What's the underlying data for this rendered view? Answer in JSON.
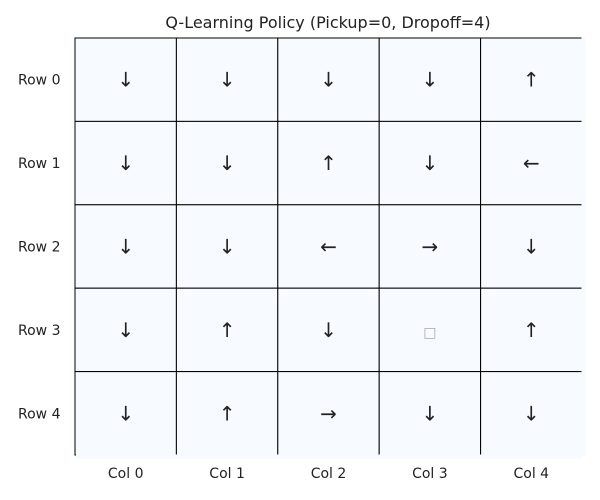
{
  "chart_data": {
    "type": "heatmap",
    "title": "Q-Learning Policy (Pickup=0, Dropoff=4)",
    "rows": [
      "Row 0",
      "Row 1",
      "Row 2",
      "Row 3",
      "Row 4"
    ],
    "cols": [
      "Col 0",
      "Col 1",
      "Col 2",
      "Col 3",
      "Col 4"
    ],
    "cell_values": [
      [
        "↓",
        "↓",
        "↓",
        "↓",
        "↑"
      ],
      [
        "↓",
        "↓",
        "↑",
        "↓",
        "←"
      ],
      [
        "↓",
        "↓",
        "←",
        "→",
        "↓"
      ],
      [
        "↓",
        "↑",
        "↓",
        "□",
        "↑"
      ],
      [
        "↓",
        "↑",
        "→",
        "↓",
        "↓"
      ]
    ],
    "cell_fill": "#f7fafe",
    "grid_line_color": "#000000",
    "grid": true
  }
}
